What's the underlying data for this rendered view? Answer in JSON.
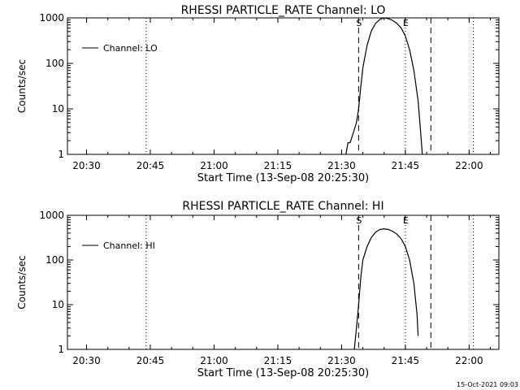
{
  "footer_timestamp": "15-Oct-2021 09:03",
  "chart_data": [
    {
      "type": "line",
      "title": "RHESSI PARTICLE_RATE Channel: LO",
      "xlabel": "Start Time (13-Sep-08 20:25:30)",
      "ylabel": "Counts/sec",
      "x_ticks": [
        "20:30",
        "20:45",
        "21:00",
        "21:15",
        "21:30",
        "21:45",
        "22:00"
      ],
      "y_ticks": [
        "1",
        "10",
        "100",
        "1000"
      ],
      "xlim": [
        "20:25:30",
        "22:07:00"
      ],
      "ylim": [
        1,
        1000
      ],
      "y_scale": "log",
      "legend": "top-left",
      "series": [
        {
          "name": "Channel: LO",
          "x": [
            "21:31:00",
            "21:31:30",
            "21:32:00",
            "21:32:30",
            "21:33:00",
            "21:33:30",
            "21:34:00",
            "21:34:30",
            "21:35:00",
            "21:36:00",
            "21:37:00",
            "21:38:00",
            "21:39:00",
            "21:40:00",
            "21:41:00",
            "21:42:00",
            "21:43:00",
            "21:44:00",
            "21:45:00",
            "21:46:00",
            "21:47:00",
            "21:48:00",
            "21:48:30",
            "21:49:00"
          ],
          "values": [
            1,
            1.8,
            1.8,
            2.5,
            3.5,
            5,
            10,
            30,
            80,
            250,
            520,
            760,
            920,
            1000,
            960,
            880,
            760,
            600,
            400,
            200,
            70,
            15,
            4,
            1
          ]
        }
      ],
      "annotations": [
        {
          "label": "S",
          "x": "21:34:00",
          "style": "dashed"
        },
        {
          "label": "E",
          "x": "21:45:00",
          "style": "dotted"
        },
        {
          "label": "",
          "x": "21:51:00",
          "style": "dashed"
        },
        {
          "label": "",
          "x": "20:44:00",
          "style": "dotted"
        },
        {
          "label": "",
          "x": "22:01:00",
          "style": "dotted"
        }
      ]
    },
    {
      "type": "line",
      "title": "RHESSI PARTICLE_RATE Channel: HI",
      "xlabel": "Start Time (13-Sep-08 20:25:30)",
      "ylabel": "Counts/sec",
      "x_ticks": [
        "20:30",
        "20:45",
        "21:00",
        "21:15",
        "21:30",
        "21:45",
        "22:00"
      ],
      "y_ticks": [
        "1",
        "10",
        "100",
        "1000"
      ],
      "xlim": [
        "20:25:30",
        "22:07:00"
      ],
      "ylim": [
        1,
        1000
      ],
      "y_scale": "log",
      "legend": "top-left",
      "series": [
        {
          "name": "Channel: HI",
          "x": [
            "21:33:00",
            "21:33:30",
            "21:34:00",
            "21:34:30",
            "21:35:00",
            "21:36:00",
            "21:37:00",
            "21:38:00",
            "21:39:00",
            "21:40:00",
            "21:41:00",
            "21:42:00",
            "21:43:00",
            "21:44:00",
            "21:45:00",
            "21:46:00",
            "21:47:00",
            "21:47:45",
            "21:48:00"
          ],
          "values": [
            1,
            3,
            10,
            40,
            100,
            200,
            320,
            420,
            480,
            500,
            480,
            440,
            380,
            300,
            200,
            100,
            30,
            6,
            2
          ]
        }
      ],
      "annotations": [
        {
          "label": "S",
          "x": "21:34:00",
          "style": "dashed"
        },
        {
          "label": "E",
          "x": "21:45:00",
          "style": "dotted"
        },
        {
          "label": "",
          "x": "21:51:00",
          "style": "dashed"
        },
        {
          "label": "",
          "x": "20:44:00",
          "style": "dotted"
        },
        {
          "label": "",
          "x": "22:01:00",
          "style": "dotted"
        }
      ]
    }
  ]
}
